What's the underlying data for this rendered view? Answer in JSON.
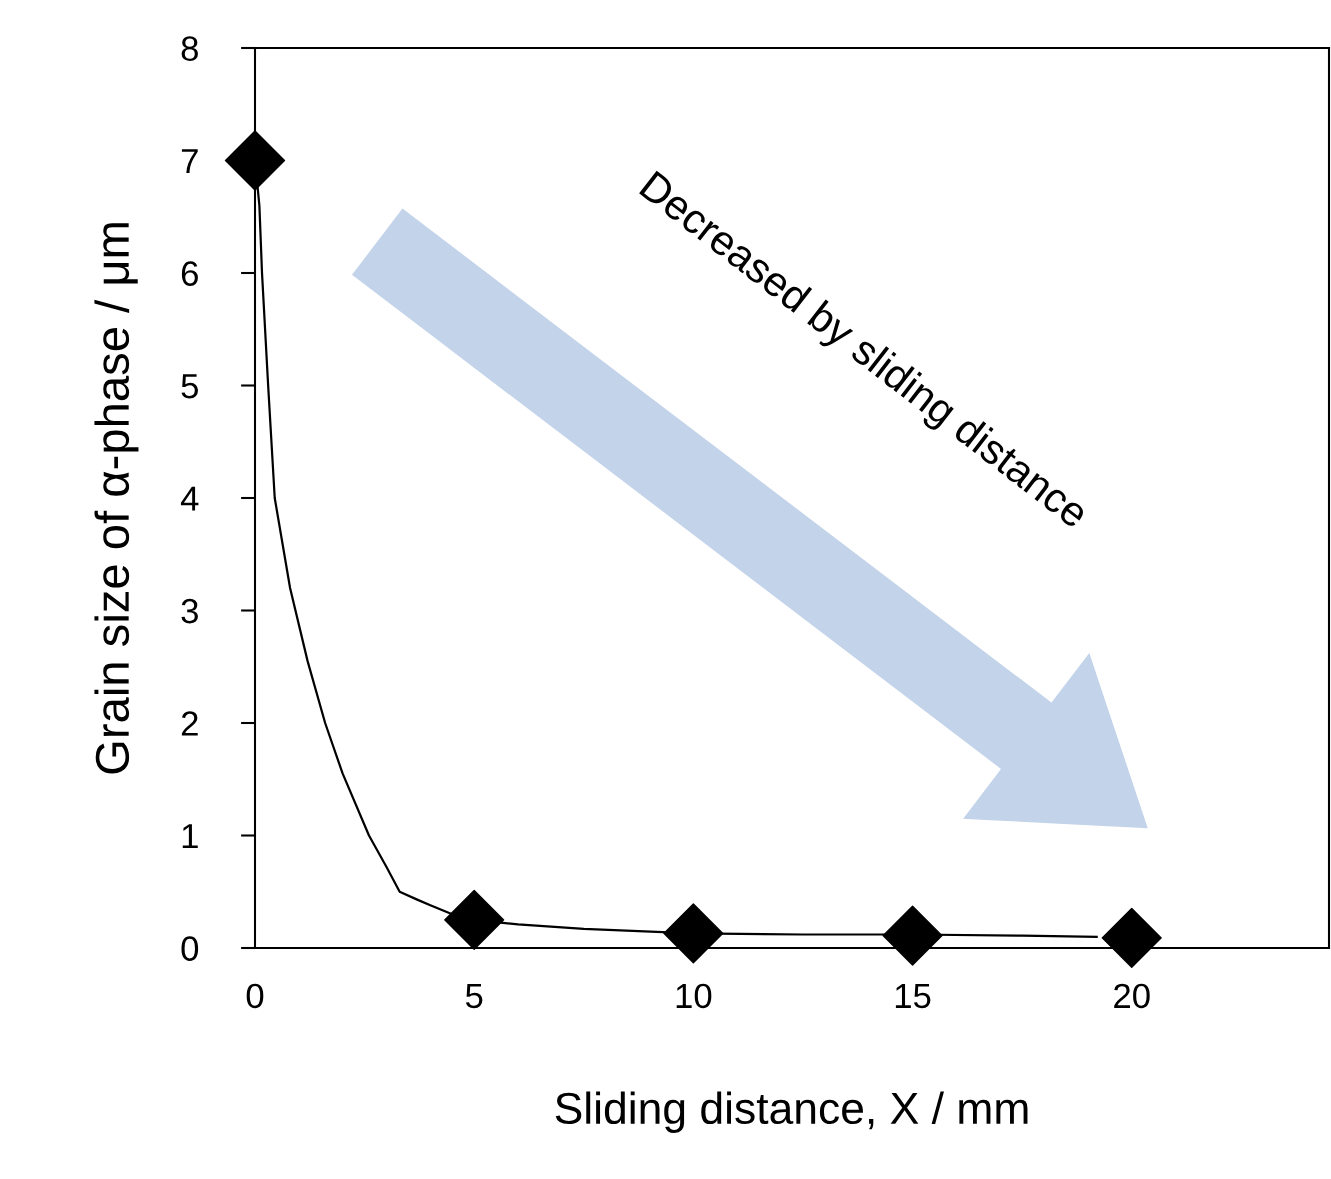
{
  "chart_data": {
    "type": "scatter",
    "xlabel": "Sliding distance, X / mm",
    "ylabel": "Grain size of α-phase / μm",
    "xlim": [
      0,
      24.5
    ],
    "xticks": [
      0,
      5,
      10,
      15,
      20
    ],
    "ylim": [
      0,
      8
    ],
    "yticks": [
      0,
      1,
      2,
      3,
      4,
      5,
      6,
      7,
      8
    ],
    "grid": false,
    "legend": false,
    "series": [
      {
        "type": "line",
        "color": "#000000",
        "marker": "none",
        "line_style": "solid",
        "x": [
          0,
          0.1,
          0.16,
          0.3,
          0.45,
          0.8,
          1.2,
          1.6,
          2.0,
          2.6,
          3.0,
          3.3,
          3.7,
          4.0,
          4.5,
          5,
          6,
          7.5,
          10,
          12.5,
          15,
          17.5,
          19.2
        ],
        "values": [
          7,
          6.6,
          6,
          5,
          4,
          3.2,
          2.55,
          2,
          1.55,
          1,
          0.72,
          0.5,
          0.43,
          0.38,
          0.3,
          0.25,
          0.21,
          0.17,
          0.13,
          0.12,
          0.12,
          0.11,
          0.1
        ]
      },
      {
        "color": "#000000",
        "marker": "diamond",
        "x": [
          0,
          5,
          10,
          15,
          20
        ],
        "values": [
          7,
          0.25,
          0.13,
          0.11,
          0.09
        ]
      }
    ],
    "annotations": [
      "Decreased by sliding distance"
    ]
  }
}
